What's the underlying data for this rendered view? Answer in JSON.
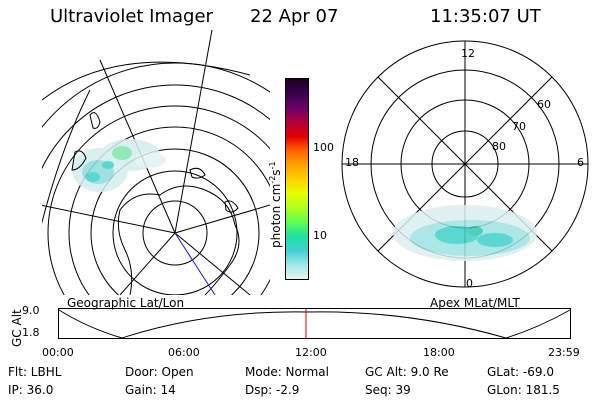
{
  "header": {
    "title": "Ultraviolet Imager",
    "date": "22 Apr 07",
    "time": "11:35:07 UT"
  },
  "geo_panel": {
    "label": "Geographic Lat/Lon"
  },
  "colorbar": {
    "unit": "photon cm",
    "unit_exp1": "-2",
    "unit_mid": "s",
    "unit_exp2": "-1",
    "tick_100": "100",
    "tick_10": "10",
    "colors": [
      "#1a0020",
      "#3a0050",
      "#6a006a",
      "#b0003a",
      "#e00000",
      "#ff6000",
      "#ffa000",
      "#ffd000",
      "#e8ff00",
      "#b0ff20",
      "#60ff50",
      "#20e0a0",
      "#40d0d0",
      "#a0e8e8",
      "#e8f4f4"
    ]
  },
  "mag_panel": {
    "label": "Apex MLat/MLT",
    "mlt_12": "12",
    "mlt_18": "18",
    "mlt_6": "6",
    "mlt_0": "0",
    "lat_60": "60",
    "lat_70": "70",
    "lat_80": "80"
  },
  "altitude_plot": {
    "ylabel": "GC Alt",
    "ytick_top": "9.0",
    "ytick_bottom": "1.8",
    "xticks": [
      "00:00",
      "06:00",
      "12:00",
      "18:00",
      "23:59"
    ],
    "current_time_color": "#e00000"
  },
  "info": {
    "flt": "Flt: LBHL",
    "ip": "IP: 36.0",
    "door": "Door: Open",
    "gain": "Gain: 14",
    "mode": "Mode: Normal",
    "dsp": "Dsp:    -2.9",
    "gcalt": "GC Alt: 9.0 Re",
    "seq": "Seq: 39",
    "glat": "GLat: -69.0",
    "glon": "GLon: 181.5"
  }
}
